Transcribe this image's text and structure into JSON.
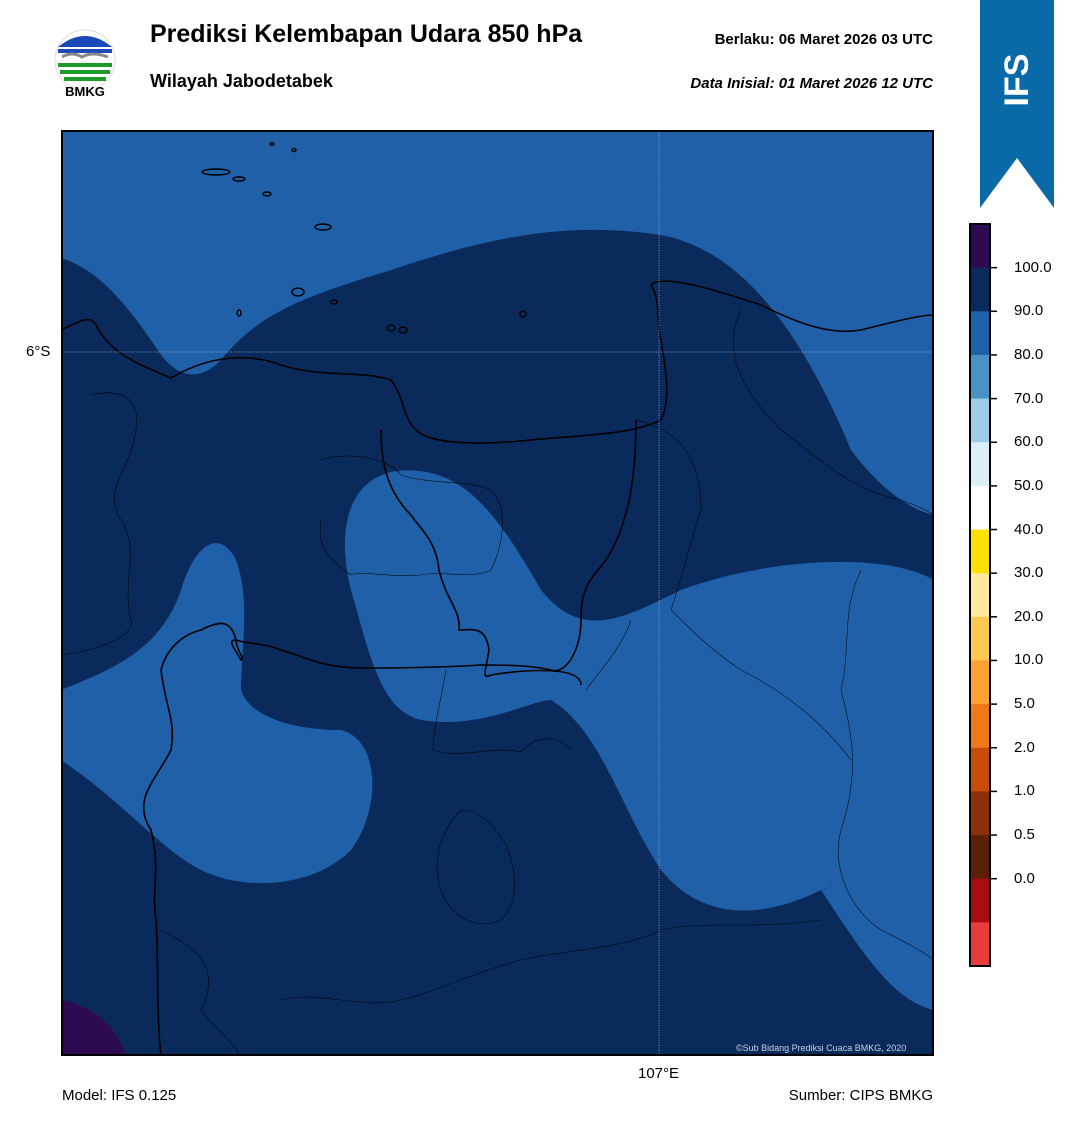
{
  "header": {
    "logo_text": "BMKG",
    "title": "Prediksi Kelembapan Udara 850 hPa",
    "subtitle": "Wilayah Jabodetabek",
    "valid": "Berlaku:  06 Maret 2026 03 UTC",
    "initial": "Data Inisial:  01 Maret 2026 12 UTC",
    "banner": "IFS"
  },
  "map": {
    "lat_label": "6°S",
    "lon_label": "107°E",
    "copyright": "©Sub Bidang Prediksi Cuaca BMKG, 2020"
  },
  "footer": {
    "model": "Model: IFS 0.125",
    "source": "Sumber: CIPS BMKG"
  },
  "colorbar": {
    "labels": [
      "100.0",
      "90.0",
      "80.0",
      "70.0",
      "60.0",
      "50.0",
      "40.0",
      "30.0",
      "20.0",
      "10.0",
      "5.0",
      "2.0",
      "1.0",
      "0.5",
      "0.0"
    ],
    "colors_top_to_bottom": [
      "#2e0a52",
      "#0a2a5c",
      "#2060a8",
      "#4a92c6",
      "#9dcce6",
      "#dceef8",
      "#ffffff",
      "#ffe000",
      "#ffe8a0",
      "#ffc850",
      "#ffa030",
      "#f07818",
      "#c84c08",
      "#8c3008",
      "#5a2008",
      "#a80c10",
      "#e83c3c"
    ]
  },
  "palette": {
    "dark": "#0a2a5c",
    "medium": "#2060a8",
    "purple": "#2e0a52",
    "banner": "#0a6aa8"
  }
}
